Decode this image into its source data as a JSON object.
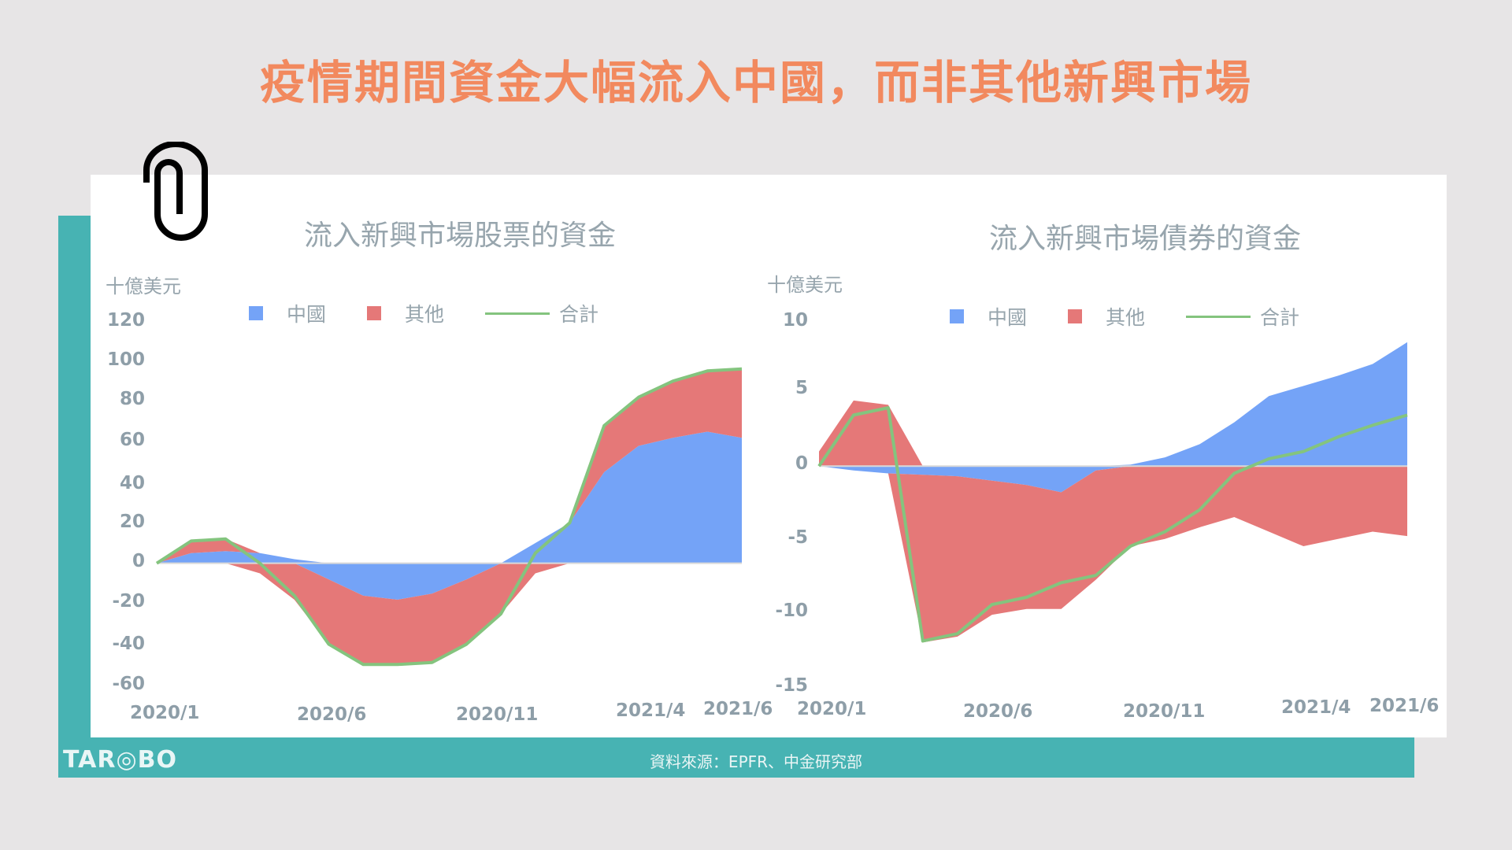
{
  "headline": "疫情期間資金大幅流入中國，而非其他新興市場",
  "colors": {
    "china": "#74a3f7",
    "others": "#e57878",
    "total": "#84c47e",
    "teal": "#47b3b3",
    "headline": "#f2895e"
  },
  "icons": {
    "paperclip": "paperclip-icon"
  },
  "footer": {
    "logo": "TAR◎BO",
    "source": "資料來源：EPFR、中金研究部"
  },
  "charts": {
    "equity": {
      "title": "流入新興市場股票的資金",
      "unit": "十億美元",
      "legend": {
        "china": "中國",
        "others": "其他",
        "total": "合計"
      },
      "yticks": [
        "120",
        "100",
        "80",
        "60",
        "40",
        "20",
        "0",
        "-20",
        "-40",
        "-60"
      ],
      "xticks": [
        "2020/1",
        "2020/6",
        "2020/11",
        "2021/4",
        "2021/6"
      ]
    },
    "bond": {
      "title": "流入新興市場債券的資金",
      "unit": "十億美元",
      "legend": {
        "china": "中國",
        "others": "其他",
        "total": "合計"
      },
      "yticks": [
        "10",
        "5",
        "0",
        "-5",
        "-10",
        "-15"
      ],
      "xticks": [
        "2020/1",
        "2020/6",
        "2020/11",
        "2021/4",
        "2021/6"
      ]
    }
  },
  "chart_data": [
    {
      "type": "area",
      "title": "流入新興市場股票的資金",
      "ylabel": "十億美元",
      "xlabel": "",
      "ylim": [
        -60,
        120
      ],
      "grid": false,
      "legend_position": "top",
      "x": [
        "2020/1",
        "2020/2",
        "2020/3",
        "2020/4",
        "2020/5",
        "2020/6",
        "2020/7",
        "2020/8",
        "2020/9",
        "2020/10",
        "2020/11",
        "2020/12",
        "2021/1",
        "2021/2",
        "2021/3",
        "2021/4",
        "2021/5",
        "2021/6"
      ],
      "series": [
        {
          "name": "中國",
          "kind": "stacked-area",
          "values": [
            0,
            5,
            6,
            5,
            2,
            -8,
            -16,
            -18,
            -15,
            -8,
            0,
            10,
            20,
            45,
            58,
            62,
            65,
            62
          ]
        },
        {
          "name": "其他",
          "kind": "stacked-area",
          "values": [
            0,
            6,
            6,
            -5,
            -18,
            -32,
            -34,
            -32,
            -34,
            -32,
            -25,
            -5,
            0,
            23,
            24,
            28,
            30,
            34
          ]
        },
        {
          "name": "合計",
          "kind": "line",
          "values": [
            0,
            11,
            12,
            0,
            -16,
            -40,
            -50,
            -50,
            -49,
            -40,
            -25,
            5,
            20,
            68,
            82,
            90,
            95,
            96
          ]
        }
      ]
    },
    {
      "type": "area",
      "title": "流入新興市場債券的資金",
      "ylabel": "十億美元",
      "xlabel": "",
      "ylim": [
        -15,
        10
      ],
      "grid": false,
      "legend_position": "top",
      "x": [
        "2020/1",
        "2020/2",
        "2020/3",
        "2020/4",
        "2020/5",
        "2020/6",
        "2020/7",
        "2020/8",
        "2020/9",
        "2020/10",
        "2020/11",
        "2020/12",
        "2021/1",
        "2021/2",
        "2021/3",
        "2021/4",
        "2021/5",
        "2021/6"
      ],
      "series": [
        {
          "name": "中國",
          "kind": "stacked-area",
          "values": [
            0,
            -0.3,
            -0.5,
            -0.6,
            -0.7,
            -1.0,
            -1.3,
            -1.8,
            -0.3,
            0.1,
            0.6,
            1.5,
            3.0,
            4.8,
            5.5,
            6.2,
            7.0,
            8.5
          ]
        },
        {
          "name": "其他",
          "kind": "stacked-area",
          "values": [
            1.0,
            4.5,
            4.2,
            -11.5,
            -11.0,
            -9.2,
            -8.5,
            -8.0,
            -7.5,
            -5.5,
            -5.0,
            -4.2,
            -3.5,
            -4.5,
            -5.5,
            -5.0,
            -4.5,
            -4.8
          ]
        },
        {
          "name": "合計",
          "kind": "line",
          "values": [
            0,
            3.5,
            4.0,
            -12.0,
            -11.5,
            -9.5,
            -9.0,
            -8.0,
            -7.5,
            -5.5,
            -4.5,
            -3.0,
            -0.5,
            0.5,
            1.0,
            2.0,
            2.8,
            3.5
          ]
        }
      ]
    }
  ]
}
